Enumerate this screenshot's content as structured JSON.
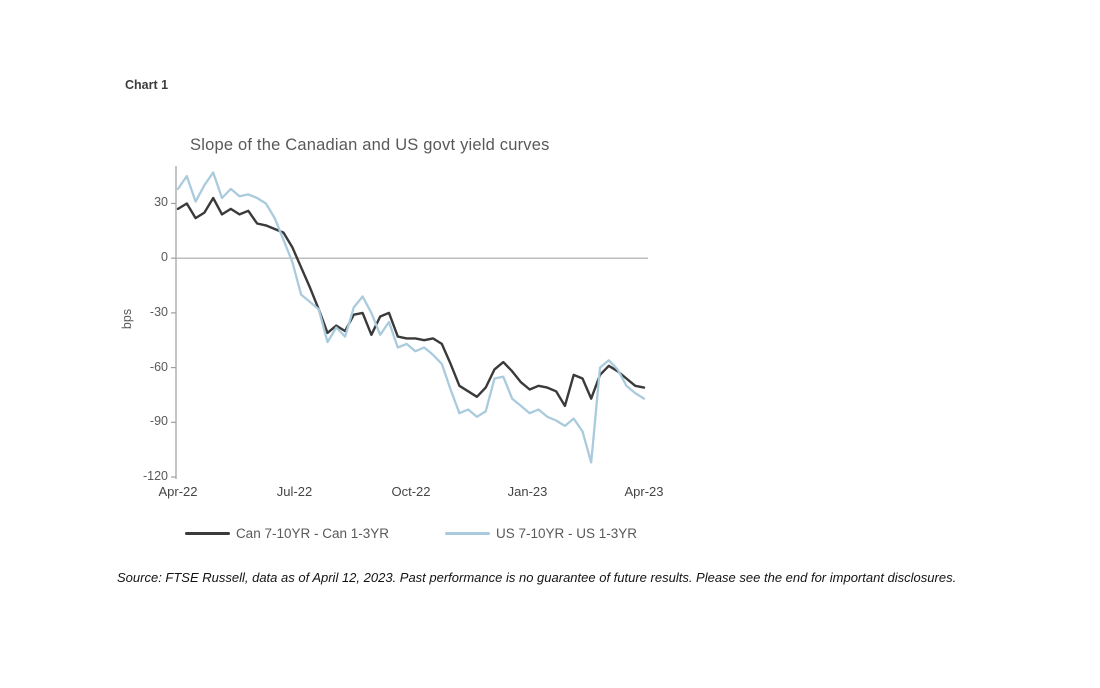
{
  "chart_label": "Chart 1",
  "footer": {
    "source": "Source: FTSE Russell, data as of April 12, 2023. Past performance is no guarantee of future results. Please see the end for important disclosures."
  },
  "colors": {
    "can_line": "#3a3a3a",
    "us_line": "#a9cbdd",
    "axis": "#9e9e9e",
    "zero_line": "#a9a9a9",
    "y_tick_text": "#595959",
    "x_tick_text": "#454545",
    "title_text": "#595959"
  },
  "chart_data": {
    "type": "line",
    "title": "Slope of the Canadian and US govt yield curves",
    "xlabel": "",
    "ylabel": "bps",
    "ylim": [
      -120,
      50
    ],
    "yticks": [
      30,
      0,
      -30,
      -60,
      -90,
      -120
    ],
    "x_ticks": [
      "Apr-22",
      "Jul-22",
      "Oct-22",
      "Jan-23",
      "Apr-23"
    ],
    "grid": false,
    "zero_line": true,
    "legend_position": "bottom",
    "x_dates": [
      "2022-04-01",
      "2022-04-08",
      "2022-04-15",
      "2022-04-22",
      "2022-04-29",
      "2022-05-06",
      "2022-05-13",
      "2022-05-20",
      "2022-05-27",
      "2022-06-03",
      "2022-06-10",
      "2022-06-17",
      "2022-06-24",
      "2022-07-01",
      "2022-07-08",
      "2022-07-15",
      "2022-07-22",
      "2022-07-29",
      "2022-08-05",
      "2022-08-12",
      "2022-08-19",
      "2022-08-26",
      "2022-09-02",
      "2022-09-09",
      "2022-09-16",
      "2022-09-23",
      "2022-09-30",
      "2022-10-07",
      "2022-10-14",
      "2022-10-21",
      "2022-10-28",
      "2022-11-04",
      "2022-11-11",
      "2022-11-18",
      "2022-11-25",
      "2022-12-02",
      "2022-12-09",
      "2022-12-16",
      "2022-12-23",
      "2022-12-30",
      "2023-01-06",
      "2023-01-13",
      "2023-01-20",
      "2023-01-27",
      "2023-02-03",
      "2023-02-10",
      "2023-02-17",
      "2023-02-24",
      "2023-03-03",
      "2023-03-10",
      "2023-03-17",
      "2023-03-24",
      "2023-03-31",
      "2023-04-07"
    ],
    "series": [
      {
        "name": "Can 7-10YR - Can 1-3YR",
        "color": "#3a3a3a",
        "values": [
          27,
          30,
          22,
          25,
          33,
          24,
          27,
          24,
          26,
          19,
          18,
          16,
          14,
          6,
          -5,
          -16,
          -28,
          -41,
          -37,
          -40,
          -31,
          -30,
          -42,
          -32,
          -30,
          -43,
          -44,
          -44,
          -45,
          -44,
          -47,
          -58,
          -70,
          -73,
          -76,
          -71,
          -61,
          -57,
          -62,
          -68,
          -72,
          -70,
          -71,
          -73,
          -81,
          -64,
          -66,
          -77,
          -64,
          -59,
          -62,
          -66,
          -70,
          -71
        ]
      },
      {
        "name": "US 7-10YR - US 1-3YR",
        "color": "#a9cbdd",
        "values": [
          38,
          45,
          31,
          40,
          47,
          33,
          38,
          34,
          35,
          33,
          30,
          22,
          10,
          -2,
          -20,
          -24,
          -28,
          -46,
          -38,
          -43,
          -27,
          -21,
          -30,
          -42,
          -35,
          -49,
          -47,
          -51,
          -49,
          -53,
          -58,
          -72,
          -85,
          -83,
          -87,
          -84,
          -66,
          -65,
          -77,
          -81,
          -85,
          -83,
          -87,
          -89,
          -92,
          -88,
          -95,
          -112,
          -60,
          -56,
          -61,
          -70,
          -74,
          -77
        ]
      }
    ]
  }
}
